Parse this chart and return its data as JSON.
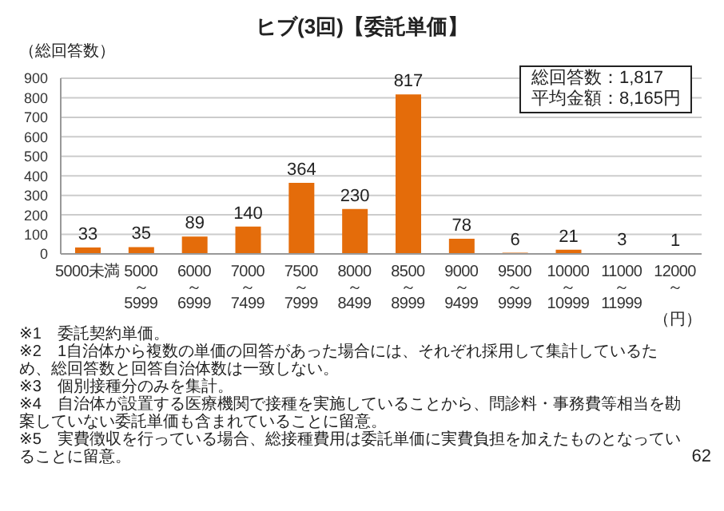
{
  "chart_data": {
    "type": "bar",
    "title": "ヒブ(3回)【委託単価】",
    "ylabel": "（総回答数）",
    "xlabel": "（円）",
    "categories": [
      "5000未満",
      "5000～5999",
      "6000～6999",
      "7000～7499",
      "7500～7999",
      "8000～8499",
      "8500～8999",
      "9000～9499",
      "9500～9999",
      "10000～10999",
      "11000～11999",
      "12000～"
    ],
    "values": [
      33,
      35,
      89,
      140,
      364,
      230,
      817,
      78,
      6,
      21,
      3,
      1
    ],
    "color": "#e46c0a",
    "ylim": [
      0,
      900
    ],
    "yticks": [
      0,
      100,
      200,
      300,
      400,
      500,
      600,
      700,
      800,
      900
    ],
    "grid": "y",
    "data_labels": true,
    "legend": false,
    "annotations": [
      "総回答数：1,817",
      "平均金額：8,165円",
      "※1　委託契約単価。",
      "※2　1自治体から複数の単価の回答があった場合には、それぞれ採用して集計しているため、総回答数と回答自治体数は一致しない。",
      "※3　個別接種分のみを集計。",
      "※4　自治体が設置する医療機関で接種を実施していることから、問診料・事務費等相当を勘案していない委託単価も含まれていることに留意。",
      "※5　実費徴収を行っている場合、総接種費用は委託単価に実費負担を加えたものとなっていることに留意。",
      "62"
    ]
  }
}
